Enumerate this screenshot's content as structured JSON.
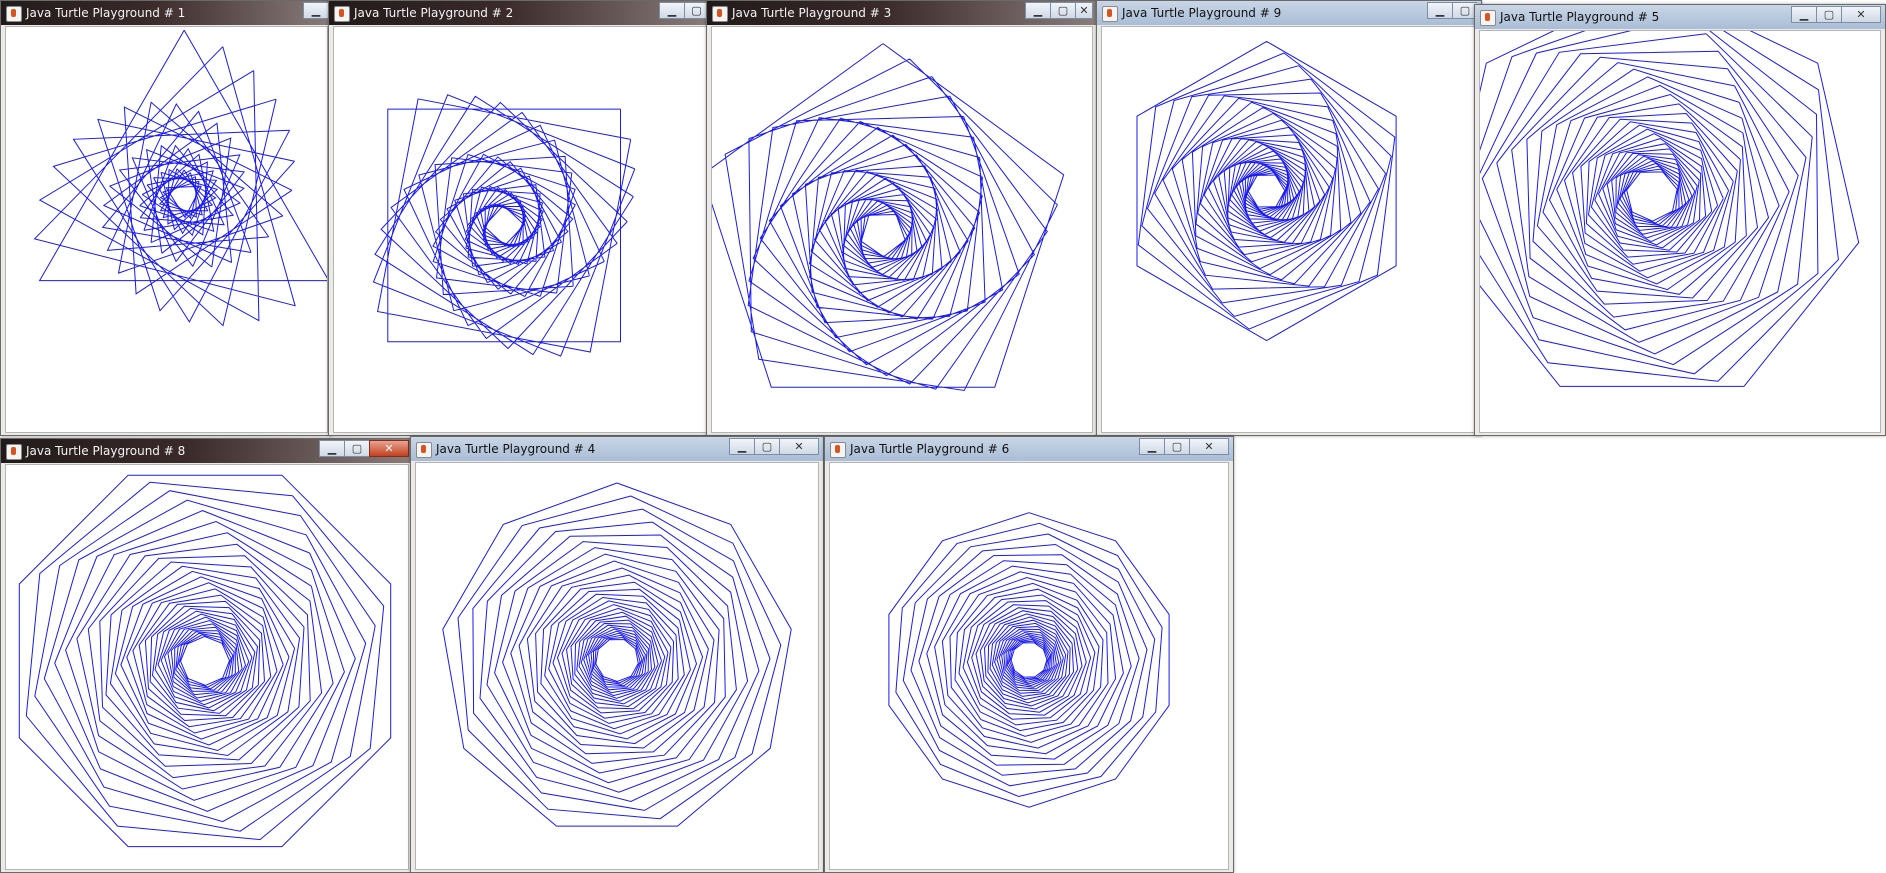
{
  "windows": [
    {
      "title": "Java Turtle Playground   # 1",
      "sides": 3,
      "steps": 30,
      "dark_titlebar": true,
      "close_red": false
    },
    {
      "title": "Java Turtle Playground   # 2",
      "sides": 4,
      "steps": 30,
      "dark_titlebar": true,
      "close_red": false
    },
    {
      "title": "Java Turtle Playground   # 3",
      "sides": 5,
      "steps": 30,
      "dark_titlebar": true,
      "close_red": false
    },
    {
      "title": "Java Turtle Playground   # 9",
      "sides": 6,
      "steps": 30,
      "dark_titlebar": false,
      "close_red": false
    },
    {
      "title": "Java Turtle Playground   # 5",
      "sides": 7,
      "steps": 30,
      "dark_titlebar": false,
      "close_red": false
    },
    {
      "title": "Java Turtle Playground   # 8",
      "sides": 8,
      "steps": 30,
      "dark_titlebar": true,
      "close_red": true
    },
    {
      "title": "Java Turtle Playground   # 4",
      "sides": 9,
      "steps": 30,
      "dark_titlebar": false,
      "close_red": false
    },
    {
      "title": "Java Turtle Playground   # 6",
      "sides": 10,
      "steps": 30,
      "dark_titlebar": false,
      "close_red": false
    }
  ],
  "colors": {
    "line": "#1a1aee",
    "turtle": "#ffffff"
  },
  "icons": {
    "minimize": "minimize-icon",
    "maximize": "maximize-icon",
    "close": "close-icon"
  }
}
